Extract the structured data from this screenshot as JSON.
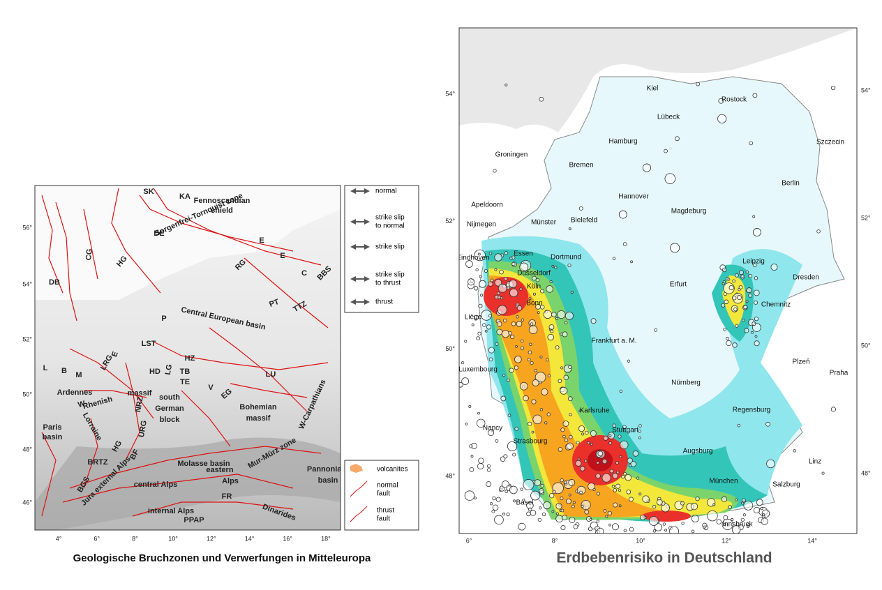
{
  "left_map": {
    "caption": "Geologische Bruchzonen und Verwerfungen in Mitteleuropa",
    "labels": [
      "SK",
      "KA",
      "Sorgenfrei-Tornquist zone",
      "DE",
      "HG",
      "CG",
      "DB",
      "E",
      "E",
      "C",
      "BBS",
      "RG",
      "Central European basin",
      "P",
      "TTZ",
      "PT",
      "Fennoscandian",
      "shield",
      "LST",
      "HZ",
      "HD",
      "LG",
      "TB",
      "TE",
      "V",
      "LU",
      "EG",
      "L",
      "B",
      "M",
      "LRG",
      "Ardennes",
      "Rhenish",
      "massif",
      "W",
      "E",
      "south",
      "German",
      "block",
      "NRZ",
      "URG",
      "Bohemian",
      "massif",
      "W-Carpathians",
      "Paris",
      "basin",
      "Lorraine",
      "HG",
      "BF",
      "BRTZ",
      "Molasse basin",
      "Mur-Mürz zone",
      "BGS",
      "Jura external Alps",
      "central Alps",
      "eastern",
      "Alps",
      "Pannonian",
      "basin",
      "FR",
      "Dinarides",
      "internal Alps",
      "PPAP"
    ],
    "lat_ticks": [
      "56°",
      "54°",
      "52°",
      "50°",
      "48°",
      "46°"
    ],
    "lon_ticks": [
      "4°",
      "6°",
      "8°",
      "10°",
      "12°",
      "14°",
      "16°",
      "18°"
    ],
    "legend": [
      [
        "normal"
      ],
      [
        "strike slip",
        "to normal"
      ],
      [
        "strike slip"
      ],
      [
        "strike slip",
        "to thrust"
      ],
      [
        "thrust"
      ]
    ],
    "legend2": [
      [
        "volcanites"
      ],
      [
        "normal",
        "fault"
      ],
      [
        "thrust",
        "fault"
      ]
    ]
  },
  "right_map": {
    "caption": "Erdbebenrisiko in Deutschland",
    "cities": [
      "Kiel",
      "Rostock",
      "Lübeck",
      "Hamburg",
      "Szczecin",
      "Groningen",
      "Bremen",
      "Berlin",
      "Hannover",
      "Apeldoorn",
      "Magdeburg",
      "Nijmegen",
      "Münster",
      "Bielefeld",
      "Essen",
      "Dortmund",
      "Eindhoven",
      "Leipzig",
      "Düsseldorf",
      "Dresden",
      "Köln",
      "Erfurt",
      "Chemnitz",
      "Bonn",
      "Liège",
      "Frankfurt a. M.",
      "Luxembourg",
      "Plzeň",
      "Praha",
      "Nürnberg",
      "Regensburg",
      "Karlsruhe",
      "Nancy",
      "Stuttgart",
      "Strasbourg",
      "Augsburg",
      "Linz",
      "München",
      "Salzburg",
      "Basel",
      "Innsbruck"
    ],
    "lat_ticks": [
      "54°",
      "52°",
      "50°",
      "48°"
    ],
    "lon_ticks": [
      "6°",
      "8°",
      "10°",
      "12°",
      "14°"
    ]
  }
}
